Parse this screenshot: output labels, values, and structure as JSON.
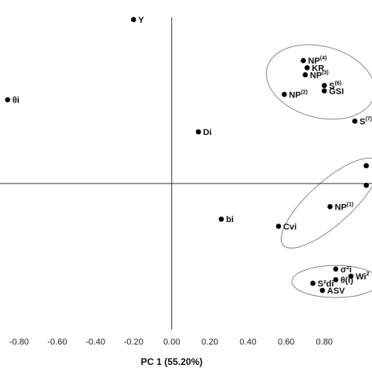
{
  "chart_data": {
    "type": "scatter",
    "xlabel": "PC 1 (55.20%)",
    "xlim": [
      -0.9,
      1.05
    ],
    "ylim": [
      -0.82,
      1.03
    ],
    "x_ticks": [
      "-0.80",
      "-0.60",
      "-0.40",
      "-0.20",
      "0.00",
      "0.20",
      "0.40",
      "0.60",
      "0.80"
    ],
    "x_tick_values": [
      -0.8,
      -0.6,
      -0.4,
      -0.2,
      0.0,
      0.2,
      0.4,
      0.6,
      0.8
    ],
    "points": [
      {
        "label": "Y",
        "sup": "",
        "x": -0.2,
        "y": 0.92
      },
      {
        "label": "θi",
        "sup": "",
        "x": -0.86,
        "y": 0.47
      },
      {
        "label": "Di",
        "sup": "",
        "x": 0.14,
        "y": 0.29
      },
      {
        "label": "NP",
        "sup": "(4)",
        "x": 0.69,
        "y": 0.69
      },
      {
        "label": "KR",
        "sup": "",
        "x": 0.71,
        "y": 0.65
      },
      {
        "label": "NP",
        "sup": "(3)",
        "x": 0.7,
        "y": 0.61
      },
      {
        "label": "S",
        "sup": "(6)",
        "x": 0.8,
        "y": 0.55
      },
      {
        "label": "GSI",
        "sup": "",
        "x": 0.8,
        "y": 0.52
      },
      {
        "label": "NP",
        "sup": "(2)",
        "x": 0.59,
        "y": 0.5
      },
      {
        "label": "S",
        "sup": "(7)",
        "x": 0.96,
        "y": 0.35
      },
      {
        "label": "",
        "sup": "",
        "x": 1.02,
        "y": 0.1
      },
      {
        "label": "",
        "sup": "",
        "x": 1.02,
        "y": -0.01
      },
      {
        "label": "NP",
        "sup": "(1)",
        "x": 0.83,
        "y": -0.13
      },
      {
        "label": "bi",
        "sup": "",
        "x": 0.26,
        "y": -0.2
      },
      {
        "label": "Cvi",
        "sup": "",
        "x": 0.56,
        "y": -0.24
      },
      {
        "label": "σ²i",
        "sup": "",
        "x": 0.86,
        "y": -0.48
      },
      {
        "label": "Wi",
        "sup": "2",
        "x": 0.94,
        "y": -0.52
      },
      {
        "label": "θ(i)",
        "sup": "",
        "x": 0.86,
        "y": -0.54
      },
      {
        "label": "S²di",
        "sup": "",
        "x": 0.74,
        "y": -0.56
      },
      {
        "label": "ASV",
        "sup": "",
        "x": 0.79,
        "y": -0.6
      }
    ],
    "ellipses": [
      {
        "cx": 0.78,
        "cy": 0.57,
        "rx": 0.29,
        "ry": 0.2,
        "rotate_deg": 15
      },
      {
        "cx": 0.83,
        "cy": -0.11,
        "rx": 0.33,
        "ry": 0.12,
        "rotate_deg": -42
      },
      {
        "cx": 0.86,
        "cy": -0.55,
        "rx": 0.23,
        "ry": 0.09,
        "rotate_deg": 0
      }
    ]
  }
}
